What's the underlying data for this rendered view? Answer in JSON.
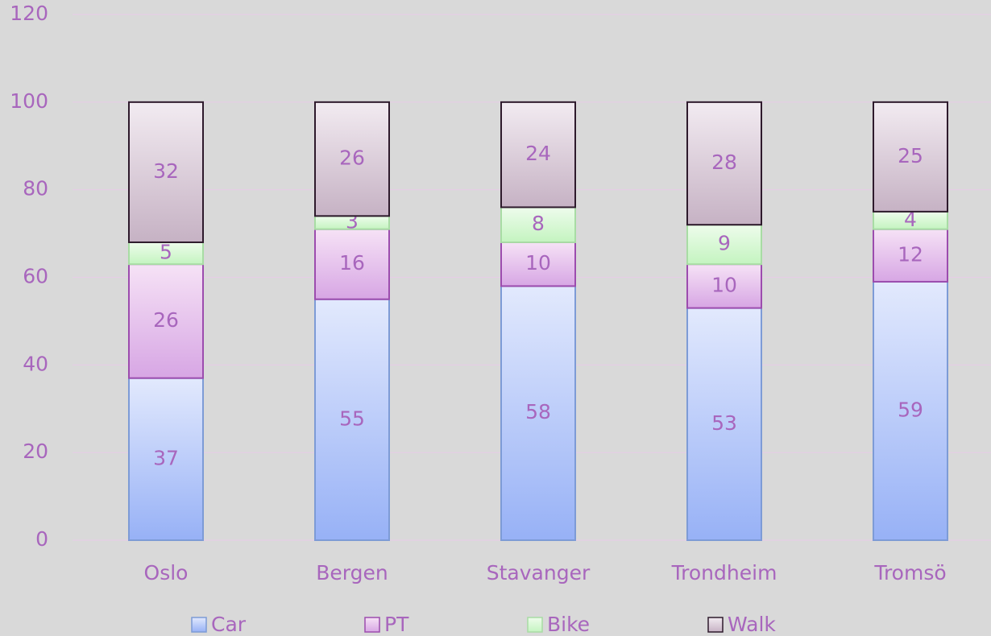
{
  "chart_data": {
    "type": "stacked_bar",
    "categories": [
      "Oslo",
      "Bergen",
      "Stavanger",
      "Trondheim",
      "Tromsö"
    ],
    "series": [
      {
        "name": "Car",
        "color": "#a9bff8",
        "values": [
          37,
          55,
          58,
          53,
          59
        ]
      },
      {
        "name": "PT",
        "color": "#e4bdec",
        "values": [
          26,
          16,
          10,
          10,
          12
        ]
      },
      {
        "name": "Bike",
        "color": "#d6f8d2",
        "values": [
          5,
          3,
          8,
          9,
          4
        ]
      },
      {
        "name": "Walk",
        "color": "#d8c8d6",
        "values": [
          32,
          26,
          24,
          28,
          25
        ]
      }
    ],
    "ylim": [
      0,
      120
    ],
    "yticks": [
      0,
      20,
      40,
      60,
      80,
      100,
      120
    ],
    "grid": true,
    "legend": "bottom"
  }
}
